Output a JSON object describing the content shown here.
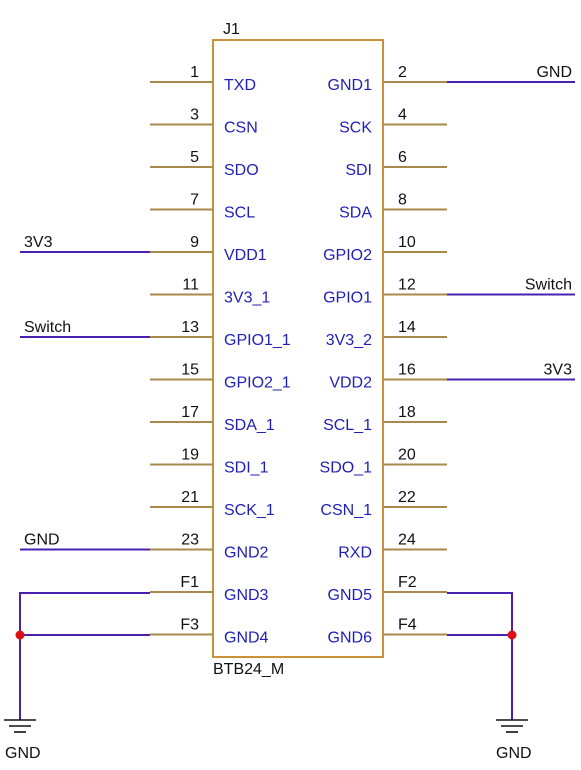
{
  "component": {
    "designator": "J1",
    "part": "BTB24_M"
  },
  "left_pins": [
    {
      "num": "1",
      "name": "TXD"
    },
    {
      "num": "3",
      "name": "CSN"
    },
    {
      "num": "5",
      "name": "SDO"
    },
    {
      "num": "7",
      "name": "SCL"
    },
    {
      "num": "9",
      "name": "VDD1",
      "net": "3V3"
    },
    {
      "num": "11",
      "name": "3V3_1"
    },
    {
      "num": "13",
      "name": "GPIO1_1",
      "net": "Switch"
    },
    {
      "num": "15",
      "name": "GPIO2_1"
    },
    {
      "num": "17",
      "name": "SDA_1"
    },
    {
      "num": "19",
      "name": "SDI_1"
    },
    {
      "num": "21",
      "name": "SCK_1"
    },
    {
      "num": "23",
      "name": "GND2",
      "net": "GND"
    },
    {
      "num": "F1",
      "name": "GND3"
    },
    {
      "num": "F3",
      "name": "GND4"
    }
  ],
  "right_pins": [
    {
      "num": "2",
      "name": "GND1",
      "net": "GND"
    },
    {
      "num": "4",
      "name": "SCK"
    },
    {
      "num": "6",
      "name": "SDI"
    },
    {
      "num": "8",
      "name": "SDA"
    },
    {
      "num": "10",
      "name": "GPIO2"
    },
    {
      "num": "12",
      "name": "GPIO1",
      "net": "Switch"
    },
    {
      "num": "14",
      "name": "3V3_2"
    },
    {
      "num": "16",
      "name": "VDD2",
      "net": "3V3"
    },
    {
      "num": "18",
      "name": "SCL_1"
    },
    {
      "num": "20",
      "name": "SDO_1"
    },
    {
      "num": "22",
      "name": "CSN_1"
    },
    {
      "num": "24",
      "name": "RXD"
    },
    {
      "num": "F2",
      "name": "GND5"
    },
    {
      "num": "F4",
      "name": "GND6"
    }
  ],
  "ground_symbols": [
    {
      "label": "GND"
    },
    {
      "label": "GND"
    }
  ],
  "colors": {
    "body": "#c8913a",
    "pin": "#a8894c",
    "wire": "#4b1fb0",
    "junction": "#dd1111",
    "pin_name": "#1f1fb8",
    "text": "#111111"
  }
}
